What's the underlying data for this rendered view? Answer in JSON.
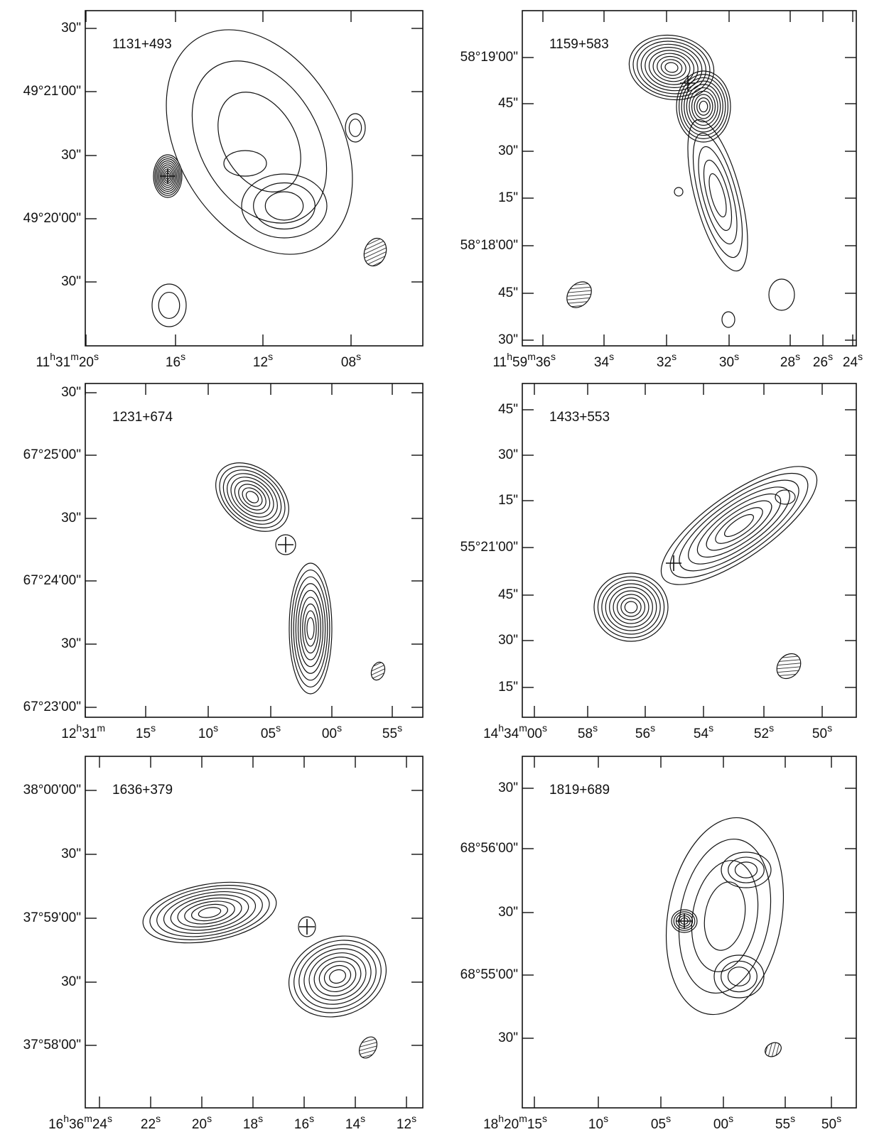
{
  "panels": [
    {
      "name": "1131+493",
      "x_ticks": [
        [
          "11",
          "h",
          "31",
          "m",
          "20",
          "s"
        ],
        [
          "16",
          "s"
        ],
        [
          "12",
          "s"
        ],
        [
          "08",
          "s"
        ]
      ],
      "y_ticks": [
        "30\"",
        "49°21'00\"",
        "30\"",
        "49°20'00\"",
        "30\""
      ]
    },
    {
      "name": "1159+583",
      "x_ticks": [
        [
          "11",
          "h",
          "59",
          "m",
          "36",
          "s"
        ],
        [
          "34",
          "s"
        ],
        [
          "32",
          "s"
        ],
        [
          "30",
          "s"
        ],
        [
          "28",
          "s"
        ],
        [
          "26",
          "s"
        ],
        [
          "24",
          "s"
        ]
      ],
      "y_ticks": [
        "58°19'00\"",
        "45\"",
        "30\"",
        "15\"",
        "58°18'00\"",
        "45\"",
        "30\""
      ]
    },
    {
      "name": "1231+674",
      "x_ticks": [
        [
          "12",
          "h",
          "31",
          "m"
        ],
        [
          "15",
          "s"
        ],
        [
          "10",
          "s"
        ],
        [
          "05",
          "s"
        ],
        [
          "00",
          "s"
        ],
        [
          "55",
          "s"
        ]
      ],
      "y_ticks": [
        "30\"",
        "67°25'00\"",
        "30\"",
        "67°24'00\"",
        "30\"",
        "67°23'00\""
      ]
    },
    {
      "name": "1433+553",
      "x_ticks": [
        [
          "14",
          "h",
          "34",
          "m",
          "00",
          "s"
        ],
        [
          "58",
          "s"
        ],
        [
          "56",
          "s"
        ],
        [
          "54",
          "s"
        ],
        [
          "52",
          "s"
        ],
        [
          "50",
          "s"
        ]
      ],
      "y_ticks": [
        "45\"",
        "30\"",
        "15\"",
        "55°21'00\"",
        "45\"",
        "30\"",
        "15\""
      ]
    },
    {
      "name": "1636+379",
      "x_ticks": [
        [
          "16",
          "h",
          "36",
          "m",
          "24",
          "s"
        ],
        [
          "22",
          "s"
        ],
        [
          "20",
          "s"
        ],
        [
          "18",
          "s"
        ],
        [
          "16",
          "s"
        ],
        [
          "14",
          "s"
        ],
        [
          "12",
          "s"
        ]
      ],
      "y_ticks": [
        "38°00'00\"",
        "30\"",
        "37°59'00\"",
        "30\"",
        "37°58'00\""
      ]
    },
    {
      "name": "1819+689",
      "x_ticks": [
        [
          "18",
          "h",
          "20",
          "m",
          "15",
          "s"
        ],
        [
          "10",
          "s"
        ],
        [
          "05",
          "s"
        ],
        [
          "00",
          "s"
        ],
        [
          "55",
          "s"
        ],
        [
          "50",
          "s"
        ]
      ],
      "y_ticks": [
        "30\"",
        "68°56'00\"",
        "30\"",
        "68°55'00\"",
        "30\""
      ]
    }
  ]
}
